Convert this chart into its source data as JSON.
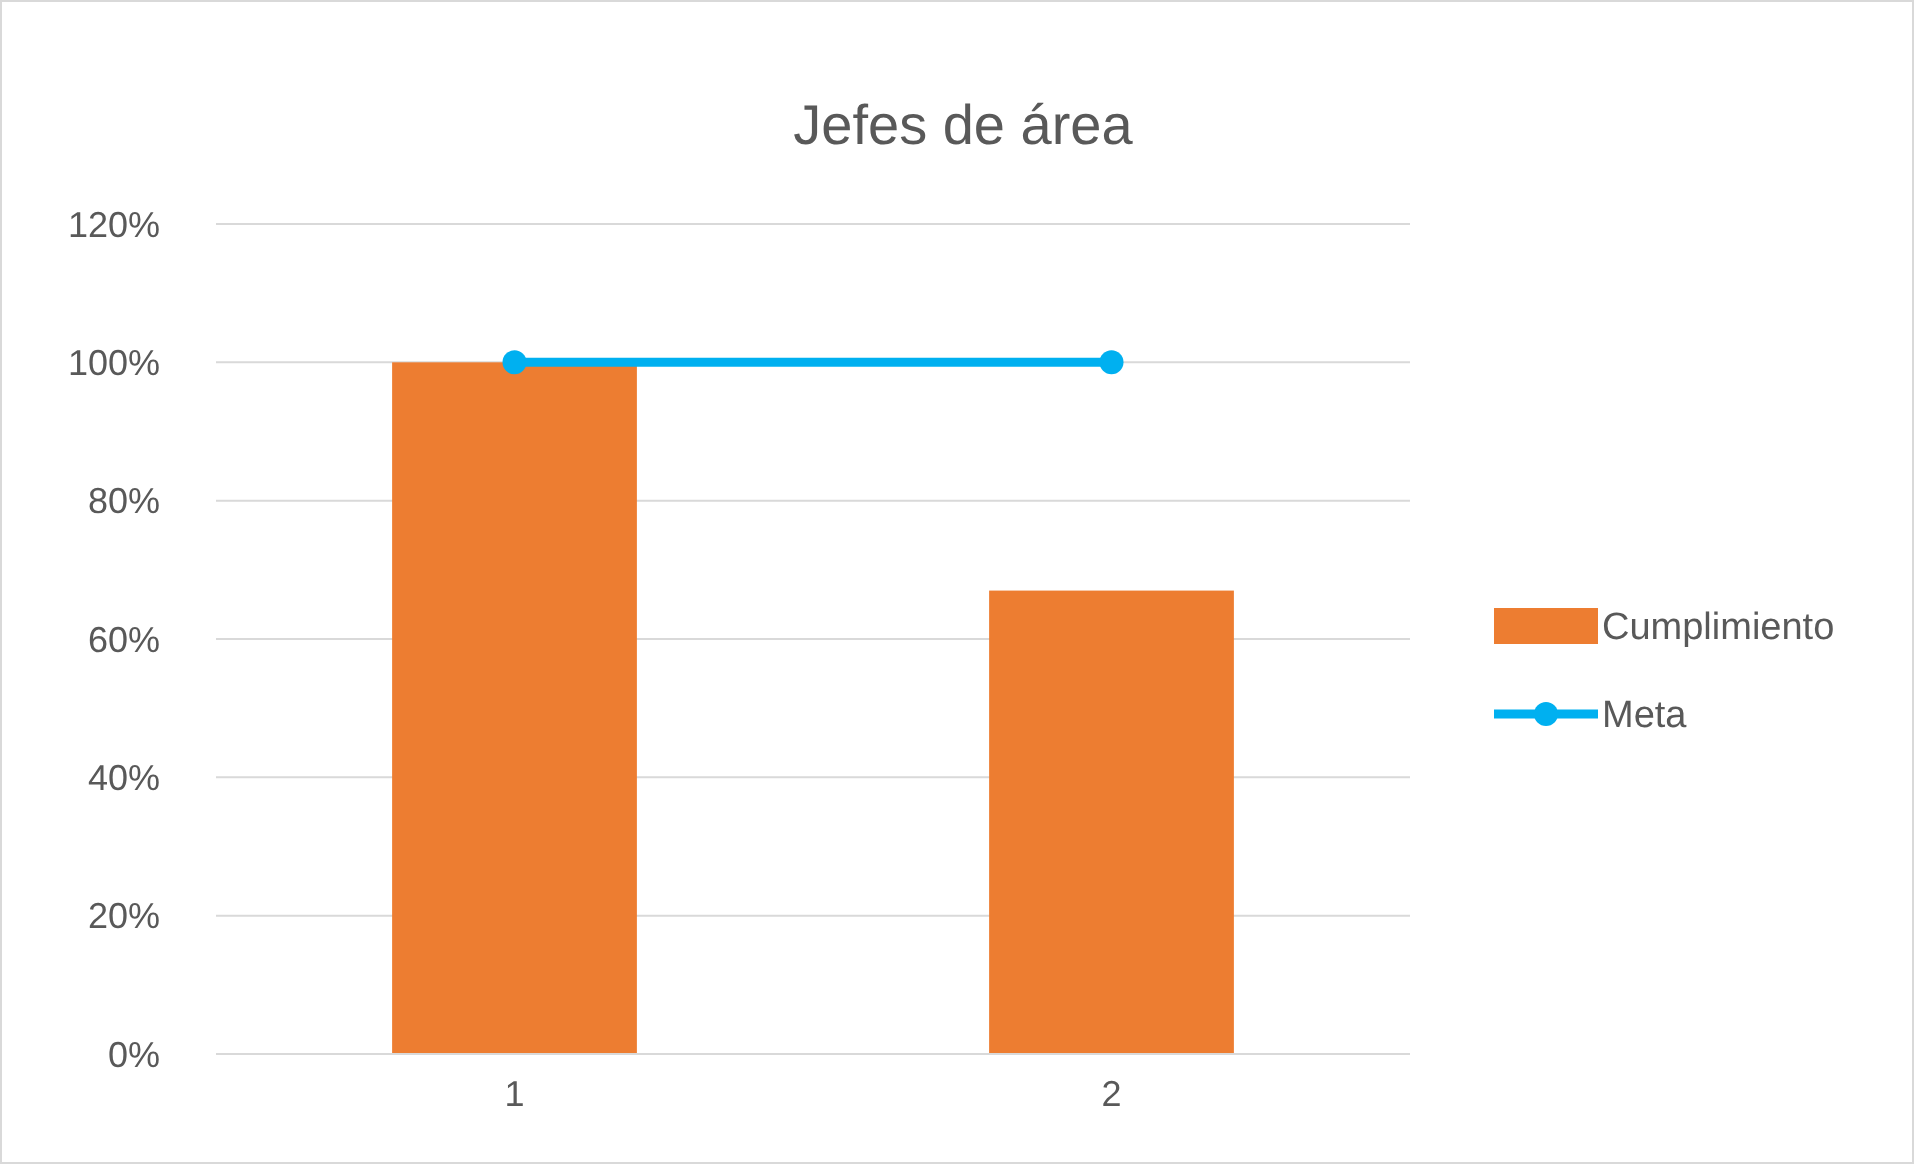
{
  "chart_data": {
    "type": "bar",
    "title": "Jefes de área",
    "categories": [
      "1",
      "2"
    ],
    "series": [
      {
        "name": "Cumplimiento",
        "color": "#ed7d31",
        "values": [
          100,
          67
        ]
      },
      {
        "name": "Meta",
        "type": "line",
        "color": "#00b0f0",
        "values": [
          100,
          100
        ],
        "marker": "circle"
      }
    ],
    "ylim": [
      0,
      120
    ],
    "yticks": [
      {
        "value": 0,
        "label": "0%"
      },
      {
        "value": 20,
        "label": "20%"
      },
      {
        "value": 40,
        "label": "40%"
      },
      {
        "value": 60,
        "label": "60%"
      },
      {
        "value": 80,
        "label": "80%"
      },
      {
        "value": 100,
        "label": "100%"
      },
      {
        "value": 120,
        "label": "120%"
      }
    ],
    "grid": "y",
    "legend": "right"
  }
}
